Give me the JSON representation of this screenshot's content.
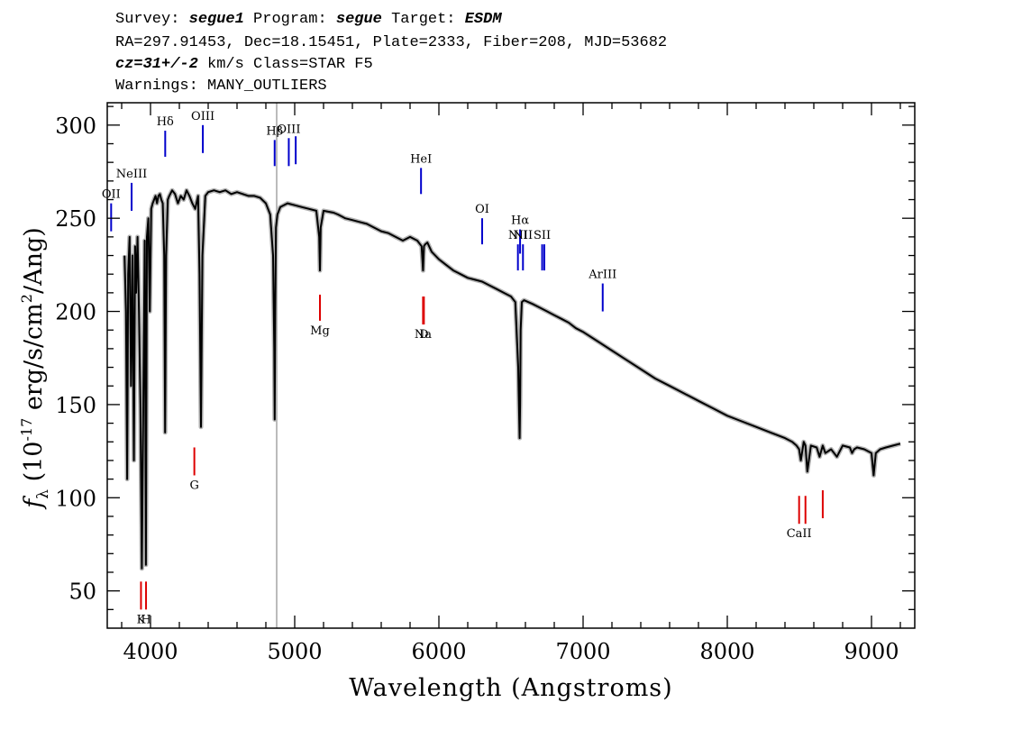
{
  "header": {
    "line1": {
      "survey_label": "Survey:",
      "survey": "segue1",
      "program_label": "Program:",
      "program": "segue",
      "target_label": "Target:",
      "target": "ESDM"
    },
    "line2": "RA=297.91453, Dec=18.15451, Plate=2333, Fiber=208, MJD=53682",
    "line3": {
      "cz_label": "cz=",
      "cz": "31+/-2",
      "rest": " km/s Class=STAR F5"
    },
    "line4": "Warnings: MANY_OUTLIERS"
  },
  "chart_data": {
    "type": "line",
    "title": "",
    "xlabel": "Wavelength (Angstroms)",
    "ylabel_prefix": "f",
    "ylabel_sub": "λ",
    "ylabel_main": " (10",
    "ylabel_exp1": "-17",
    "ylabel_mid": " erg/s/cm",
    "ylabel_exp2": "2",
    "ylabel_tail": "/Ang)",
    "xlim": [
      3700,
      9300
    ],
    "ylim": [
      30,
      312
    ],
    "grid": false,
    "legend": "none",
    "x_ticks": [
      4000,
      5000,
      6000,
      7000,
      8000,
      9000
    ],
    "y_ticks": [
      50,
      100,
      150,
      200,
      250,
      300
    ],
    "colors": {
      "spectrum": "#000000",
      "error_band": "#b4b4b4",
      "emission": "#0000cc",
      "absorption": "#dd0000",
      "marker": "#bbbbbb"
    },
    "vertical_marker_x": 4875,
    "series": [
      {
        "x": [
          3820,
          3830,
          3838,
          3845,
          3855,
          3865,
          3875,
          3885,
          3893,
          3900,
          3910,
          3920,
          3930,
          3940,
          3950,
          3960,
          3968,
          3975,
          3985,
          3995,
          4005,
          4015,
          4025,
          4035,
          4045,
          4055,
          4065,
          4075,
          4085,
          4095,
          4101,
          4108,
          4120,
          4130,
          4150,
          4170,
          4190,
          4210,
          4230,
          4250,
          4270,
          4290,
          4310,
          4330,
          4340,
          4350,
          4360,
          4380,
          4400,
          4440,
          4480,
          4520,
          4560,
          4600,
          4640,
          4680,
          4720,
          4760,
          4800,
          4830,
          4850,
          4858,
          4861,
          4865,
          4870,
          4880,
          4900,
          4950,
          5000,
          5050,
          5100,
          5150,
          5170,
          5175,
          5180,
          5200,
          5270,
          5300,
          5350,
          5400,
          5450,
          5500,
          5550,
          5600,
          5650,
          5700,
          5750,
          5800,
          5850,
          5880,
          5890,
          5896,
          5905,
          5920,
          5950,
          6000,
          6050,
          6100,
          6150,
          6200,
          6250,
          6300,
          6350,
          6400,
          6450,
          6500,
          6530,
          6550,
          6556,
          6560,
          6563,
          6567,
          6575,
          6590,
          6620,
          6650,
          6700,
          6750,
          6800,
          6850,
          6900,
          6950,
          7000,
          7100,
          7200,
          7300,
          7400,
          7500,
          7600,
          7700,
          7800,
          7900,
          8000,
          8100,
          8200,
          8300,
          8400,
          8450,
          8480,
          8498,
          8510,
          8530,
          8542,
          8555,
          8580,
          8620,
          8640,
          8662,
          8680,
          8720,
          8760,
          8800,
          8850,
          8865,
          8880,
          8900,
          8950,
          9000,
          9015,
          9030,
          9060,
          9100,
          9150,
          9200
        ],
        "y": [
          230,
          200,
          110,
          220,
          240,
          160,
          230,
          120,
          235,
          210,
          240,
          200,
          150,
          62,
          150,
          238,
          64,
          240,
          250,
          200,
          255,
          258,
          260,
          262,
          258,
          262,
          263,
          260,
          258,
          230,
          135,
          230,
          260,
          262,
          265,
          263,
          258,
          262,
          260,
          265,
          262,
          258,
          255,
          262,
          220,
          138,
          230,
          262,
          264,
          265,
          264,
          265,
          263,
          264,
          263,
          262,
          262,
          261,
          258,
          252,
          230,
          180,
          142,
          200,
          245,
          252,
          256,
          258,
          257,
          256,
          255,
          254,
          240,
          222,
          245,
          254,
          253,
          252,
          250,
          249,
          248,
          247,
          245,
          243,
          242,
          240,
          238,
          240,
          238,
          235,
          222,
          235,
          236,
          237,
          232,
          228,
          225,
          222,
          220,
          218,
          217,
          216,
          214,
          212,
          210,
          208,
          205,
          170,
          145,
          132,
          150,
          190,
          205,
          206,
          205,
          204,
          202,
          200,
          198,
          196,
          194,
          191,
          189,
          184,
          179,
          174,
          169,
          164,
          160,
          156,
          152,
          148,
          144,
          141,
          138,
          135,
          132,
          130,
          128,
          126,
          120,
          130,
          128,
          114,
          128,
          127,
          122,
          128,
          124,
          126,
          122,
          128,
          127,
          124,
          126,
          127,
          126,
          124,
          112,
          124,
          126,
          127,
          128,
          129
        ]
      }
    ],
    "emission_lines": [
      {
        "label": "OII",
        "x": 3727,
        "y0": 243,
        "y1": 258
      },
      {
        "label": "NeIII",
        "x": 3869,
        "y0": 254,
        "y1": 269
      },
      {
        "label": "Hδ",
        "x": 4102,
        "y0": 283,
        "y1": 297
      },
      {
        "label": "OIII",
        "x": 4363,
        "y0": 285,
        "y1": 300
      },
      {
        "label": "Hβ",
        "x": 4861,
        "y0": 278,
        "y1": 292
      },
      {
        "label": "OIII",
        "x": 4959,
        "y0": 278,
        "y1": 293
      },
      {
        "label": "",
        "x": 5007,
        "y0": 279,
        "y1": 294
      },
      {
        "label": "HeI",
        "x": 5876,
        "y0": 263,
        "y1": 277
      },
      {
        "label": "OI",
        "x": 6300,
        "y0": 236,
        "y1": 250
      },
      {
        "label": "NII",
        "x": 6548,
        "y0": 222,
        "y1": 236
      },
      {
        "label": "Hα",
        "x": 6563,
        "y0": 231,
        "y1": 244
      },
      {
        "label": "NII",
        "x": 6583,
        "y0": 222,
        "y1": 236
      },
      {
        "label": "SII",
        "x": 6716,
        "y0": 222,
        "y1": 236
      },
      {
        "label": "",
        "x": 6731,
        "y0": 222,
        "y1": 236
      },
      {
        "label": "ArIII",
        "x": 7136,
        "y0": 200,
        "y1": 215
      }
    ],
    "absorption_lines": [
      {
        "label": "K",
        "x": 3934,
        "y0": 40,
        "y1": 55
      },
      {
        "label": "H",
        "x": 3969,
        "y0": 40,
        "y1": 55
      },
      {
        "label": "G",
        "x": 4304,
        "y0": 112,
        "y1": 127
      },
      {
        "label": "Mg",
        "x": 5175,
        "y0": 195,
        "y1": 209
      },
      {
        "label": "Na",
        "x": 5890,
        "y0": 193,
        "y1": 208
      },
      {
        "label": "D",
        "x": 5896,
        "y0": 193,
        "y1": 208
      },
      {
        "label": "CaII",
        "x": 8498,
        "y0": 86,
        "y1": 101
      },
      {
        "label": "",
        "x": 8542,
        "y0": 86,
        "y1": 101
      },
      {
        "label": "",
        "x": 8662,
        "y0": 89,
        "y1": 104
      }
    ]
  }
}
